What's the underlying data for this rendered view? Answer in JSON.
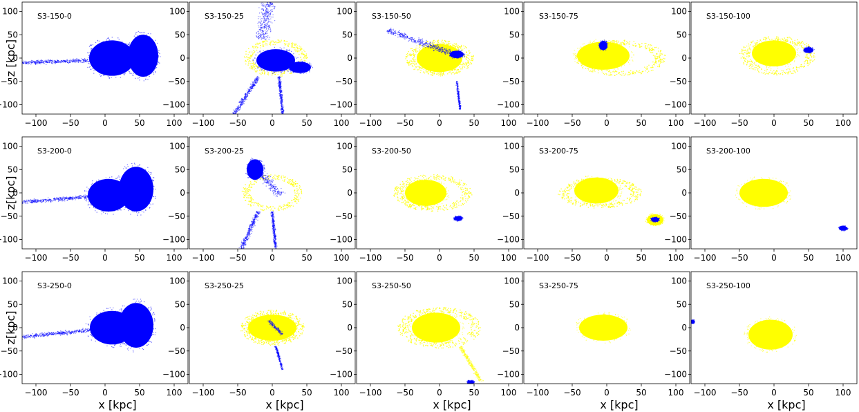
{
  "figure": {
    "ylabels": [
      "z [kpc]",
      "z[kpc]",
      "z[kpc]"
    ],
    "xlabels": [
      "x [kpc]",
      "x [kpc]",
      "x [kpc]",
      "x [kpc]",
      "x [kpc]"
    ],
    "xticks": [
      -100,
      -50,
      0,
      50,
      100
    ],
    "yticks": [
      100,
      50,
      0,
      -50,
      -100
    ],
    "xlim": [
      -120,
      120
    ],
    "ylim": [
      -120,
      120
    ],
    "colors": {
      "host": "#ffff00",
      "satellite": "#0000ff",
      "axes": "#000000"
    }
  },
  "chart_data": [
    {
      "type": "scatter",
      "title": "S3-150-0",
      "xlim": [
        -120,
        120
      ],
      "ylim": [
        -120,
        120
      ],
      "series": [
        {
          "color": "#0000ff",
          "components": [
            {
              "kind": "blob",
              "cx": 10,
              "cz": 0,
              "rx": 33,
              "rz": 38
            },
            {
              "kind": "blob",
              "cx": 55,
              "cz": 5,
              "rx": 22,
              "rz": 45
            },
            {
              "kind": "stream",
              "x0": -120,
              "z0": -10,
              "x1": -20,
              "z1": -5,
              "width": 12
            }
          ]
        }
      ]
    },
    {
      "type": "scatter",
      "title": "S3-150-25",
      "xlim": [
        -120,
        120
      ],
      "ylim": [
        -120,
        120
      ],
      "series": [
        {
          "color": "#ffff00",
          "components": [
            {
              "kind": "ring",
              "cx": 5,
              "cz": 0,
              "rx": 42,
              "rz": 36
            }
          ]
        },
        {
          "color": "#0000ff",
          "components": [
            {
              "kind": "blob",
              "cx": 5,
              "cz": -5,
              "rx": 28,
              "rz": 24
            },
            {
              "kind": "blob",
              "cx": 40,
              "cz": -20,
              "rx": 16,
              "rz": 12
            },
            {
              "kind": "stream",
              "x0": -15,
              "z0": 40,
              "x1": -5,
              "z1": 120,
              "width": 30
            },
            {
              "kind": "stream",
              "x0": -20,
              "z0": -40,
              "x1": -55,
              "z1": -120,
              "width": 10
            },
            {
              "kind": "stream",
              "x0": 10,
              "z0": -40,
              "x1": 15,
              "z1": -120,
              "width": 6
            }
          ]
        }
      ]
    },
    {
      "type": "scatter",
      "title": "S3-150-50",
      "xlim": [
        -120,
        120
      ],
      "ylim": [
        -120,
        120
      ],
      "series": [
        {
          "color": "#ffff00",
          "components": [
            {
              "kind": "blob",
              "cx": 0,
              "cz": 0,
              "rx": 33,
              "rz": 30
            },
            {
              "kind": "ring",
              "cx": 0,
              "cz": 0,
              "rx": 45,
              "rz": 35
            }
          ]
        },
        {
          "color": "#0000ff",
          "components": [
            {
              "kind": "blob",
              "cx": 25,
              "cz": 8,
              "rx": 10,
              "rz": 8
            },
            {
              "kind": "stream",
              "x0": -75,
              "z0": 60,
              "x1": 20,
              "z1": 8,
              "width": 18
            },
            {
              "kind": "stream",
              "x0": 25,
              "z0": -50,
              "x1": 30,
              "z1": -110,
              "width": 4
            }
          ]
        }
      ]
    },
    {
      "type": "scatter",
      "title": "S3-150-75",
      "xlim": [
        -120,
        120
      ],
      "ylim": [
        -120,
        120
      ],
      "series": [
        {
          "color": "#ffff00",
          "components": [
            {
              "kind": "blob",
              "cx": -5,
              "cz": 5,
              "rx": 38,
              "rz": 30
            },
            {
              "kind": "ring",
              "cx": 20,
              "cz": 0,
              "rx": 60,
              "rz": 35
            }
          ]
        },
        {
          "color": "#0000ff",
          "components": [
            {
              "kind": "blob",
              "cx": -5,
              "cz": 27,
              "rx": 6,
              "rz": 10
            }
          ]
        }
      ]
    },
    {
      "type": "scatter",
      "title": "S3-150-100",
      "xlim": [
        -120,
        120
      ],
      "ylim": [
        -120,
        120
      ],
      "series": [
        {
          "color": "#ffff00",
          "components": [
            {
              "kind": "blob",
              "cx": 0,
              "cz": 10,
              "rx": 32,
              "rz": 28
            },
            {
              "kind": "ring",
              "cx": 5,
              "cz": 5,
              "rx": 50,
              "rz": 38
            }
          ]
        },
        {
          "color": "#0000ff",
          "components": [
            {
              "kind": "blob",
              "cx": 50,
              "cz": 17,
              "rx": 7,
              "rz": 6
            }
          ]
        }
      ]
    },
    {
      "type": "scatter",
      "title": "S3-200-0",
      "xlim": [
        -120,
        120
      ],
      "ylim": [
        -120,
        120
      ],
      "series": [
        {
          "color": "#0000ff",
          "components": [
            {
              "kind": "blob",
              "cx": 5,
              "cz": -5,
              "rx": 30,
              "rz": 35
            },
            {
              "kind": "blob",
              "cx": 45,
              "cz": 8,
              "rx": 25,
              "rz": 48
            },
            {
              "kind": "stream",
              "x0": -120,
              "z0": -20,
              "x1": -20,
              "z1": -8,
              "width": 12
            }
          ]
        }
      ]
    },
    {
      "type": "scatter",
      "title": "S3-200-25",
      "xlim": [
        -120,
        120
      ],
      "ylim": [
        -120,
        120
      ],
      "series": [
        {
          "color": "#ffff00",
          "components": [
            {
              "kind": "ring",
              "cx": 0,
              "cz": 0,
              "rx": 40,
              "rz": 36
            }
          ]
        },
        {
          "color": "#0000ff",
          "components": [
            {
              "kind": "stream",
              "x0": -30,
              "z0": 62,
              "x1": 12,
              "z1": -5,
              "width": 22
            },
            {
              "kind": "blob",
              "cx": -25,
              "cz": 50,
              "rx": 12,
              "rz": 22
            },
            {
              "kind": "stream",
              "x0": -20,
              "z0": -40,
              "x1": -45,
              "z1": -120,
              "width": 10
            },
            {
              "kind": "stream",
              "x0": 0,
              "z0": -40,
              "x1": 5,
              "z1": -120,
              "width": 6
            }
          ]
        }
      ]
    },
    {
      "type": "scatter",
      "title": "S3-200-50",
      "xlim": [
        -120,
        120
      ],
      "ylim": [
        -120,
        120
      ],
      "series": [
        {
          "color": "#ffff00",
          "components": [
            {
              "kind": "blob",
              "cx": -20,
              "cz": 0,
              "rx": 30,
              "rz": 28
            },
            {
              "kind": "ring",
              "cx": -10,
              "cz": 0,
              "rx": 52,
              "rz": 36
            }
          ]
        },
        {
          "color": "#0000ff",
          "components": [
            {
              "kind": "blob",
              "cx": 27,
              "cz": -55,
              "rx": 6,
              "rz": 5
            }
          ]
        }
      ]
    },
    {
      "type": "scatter",
      "title": "S3-200-75",
      "xlim": [
        -120,
        120
      ],
      "ylim": [
        -120,
        120
      ],
      "series": [
        {
          "color": "#ffff00",
          "components": [
            {
              "kind": "blob",
              "cx": -15,
              "cz": 5,
              "rx": 32,
              "rz": 28
            },
            {
              "kind": "ring",
              "cx": -10,
              "cz": 0,
              "rx": 55,
              "rz": 30
            },
            {
              "kind": "blob",
              "cx": 70,
              "cz": -58,
              "rx": 12,
              "rz": 12
            }
          ]
        },
        {
          "color": "#0000ff",
          "components": [
            {
              "kind": "blob",
              "cx": 70,
              "cz": -57,
              "rx": 6,
              "rz": 5
            }
          ]
        }
      ]
    },
    {
      "type": "scatter",
      "title": "S3-200-100",
      "xlim": [
        -120,
        120
      ],
      "ylim": [
        -120,
        120
      ],
      "series": [
        {
          "color": "#ffff00",
          "components": [
            {
              "kind": "blob",
              "cx": -15,
              "cz": 0,
              "rx": 35,
              "rz": 30
            }
          ]
        },
        {
          "color": "#0000ff",
          "components": [
            {
              "kind": "blob",
              "cx": 100,
              "cz": -76,
              "rx": 6,
              "rz": 5
            }
          ]
        }
      ]
    },
    {
      "type": "scatter",
      "title": "S3-250-0",
      "xlim": [
        -120,
        120
      ],
      "ylim": [
        -120,
        120
      ],
      "series": [
        {
          "color": "#0000ff",
          "components": [
            {
              "kind": "blob",
              "cx": 10,
              "cz": 0,
              "rx": 32,
              "rz": 36
            },
            {
              "kind": "blob",
              "cx": 45,
              "cz": 5,
              "rx": 25,
              "rz": 48
            },
            {
              "kind": "stream",
              "x0": -120,
              "z0": -20,
              "x1": -20,
              "z1": -5,
              "width": 12
            }
          ]
        }
      ]
    },
    {
      "type": "scatter",
      "title": "S3-250-25",
      "xlim": [
        -120,
        120
      ],
      "ylim": [
        -120,
        120
      ],
      "series": [
        {
          "color": "#ffff00",
          "components": [
            {
              "kind": "blob",
              "cx": 0,
              "cz": 0,
              "rx": 35,
              "rz": 28
            },
            {
              "kind": "ring",
              "cx": 0,
              "cz": 0,
              "rx": 42,
              "rz": 35
            }
          ]
        },
        {
          "color": "#0000ff",
          "components": [
            {
              "kind": "stream",
              "x0": -5,
              "z0": 15,
              "x1": 15,
              "z1": -15,
              "width": 8
            },
            {
              "kind": "stream",
              "x0": 5,
              "z0": -40,
              "x1": 15,
              "z1": -90,
              "width": 5
            }
          ]
        }
      ]
    },
    {
      "type": "scatter",
      "title": "S3-250-50",
      "xlim": [
        -120,
        120
      ],
      "ylim": [
        -120,
        120
      ],
      "series": [
        {
          "color": "#ffff00",
          "components": [
            {
              "kind": "blob",
              "cx": -5,
              "cz": 0,
              "rx": 35,
              "rz": 32
            },
            {
              "kind": "ring",
              "cx": 0,
              "cz": 0,
              "rx": 55,
              "rz": 40
            },
            {
              "kind": "stream",
              "x0": 30,
              "z0": -40,
              "x1": 60,
              "z1": -115,
              "width": 8
            }
          ]
        },
        {
          "color": "#0000ff",
          "components": [
            {
              "kind": "blob",
              "cx": 45,
              "cz": -117,
              "rx": 5,
              "rz": 4
            }
          ]
        }
      ]
    },
    {
      "type": "scatter",
      "title": "S3-250-75",
      "xlim": [
        -120,
        120
      ],
      "ylim": [
        -120,
        120
      ],
      "series": [
        {
          "color": "#ffff00",
          "components": [
            {
              "kind": "blob",
              "cx": -5,
              "cz": 0,
              "rx": 35,
              "rz": 28
            }
          ]
        }
      ]
    },
    {
      "type": "scatter",
      "title": "S3-250-100",
      "xlim": [
        -120,
        120
      ],
      "ylim": [
        -120,
        120
      ],
      "series": [
        {
          "color": "#ffff00",
          "components": [
            {
              "kind": "blob",
              "cx": -5,
              "cz": -15,
              "rx": 32,
              "rz": 32
            }
          ]
        },
        {
          "color": "#0000ff",
          "components": [
            {
              "kind": "blob",
              "cx": -118,
              "cz": 13,
              "rx": 3,
              "rz": 4
            }
          ]
        }
      ]
    }
  ]
}
